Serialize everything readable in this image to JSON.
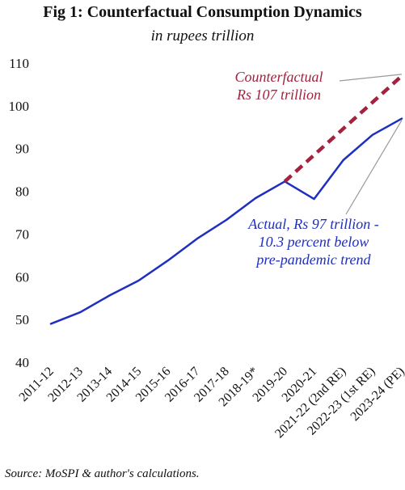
{
  "title": "Fig 1: Counterfactual Consumption Dynamics",
  "subtitle": "in rupees trillion",
  "source": "Source: MoSPI & author's calculations.",
  "annotations": {
    "counterfactual_line1": "Counterfactual",
    "counterfactual_line2": "Rs 107 trillion",
    "actual_line1": "Actual, Rs 97 trillion -",
    "actual_line2": "10.3 percent below",
    "actual_line3": "pre-pandemic trend"
  },
  "colors": {
    "actual": "#1f2fbf",
    "counterfactual": "#a3233f",
    "pointer": "#9a9a9a"
  },
  "chart_data": {
    "type": "line",
    "title": "Fig 1: Counterfactual Consumption Dynamics",
    "subtitle": "in rupees trillion",
    "categories": [
      "2011-12",
      "2012-13",
      "2013-14",
      "2014-15",
      "2015-16",
      "2016-17",
      "2017-18",
      "2018-19*",
      "2019-20",
      "2020-21",
      "2021-22 (2nd RE)",
      "2022-23 (1st RE)",
      "2023-24 (PE)"
    ],
    "ylim": [
      40,
      110
    ],
    "yticks": [
      40,
      50,
      60,
      70,
      80,
      90,
      100,
      110
    ],
    "grid": false,
    "series": [
      {
        "name": "Actual",
        "style": "solid",
        "values": [
          49,
          51.7,
          55.6,
          59.1,
          63.8,
          68.9,
          73.3,
          78.4,
          82.3,
          78.2,
          87.3,
          93.2,
          97
        ]
      },
      {
        "name": "Counterfactual",
        "style": "dashed",
        "values": [
          null,
          null,
          null,
          null,
          null,
          null,
          null,
          null,
          82.3,
          null,
          null,
          null,
          107
        ]
      }
    ]
  }
}
